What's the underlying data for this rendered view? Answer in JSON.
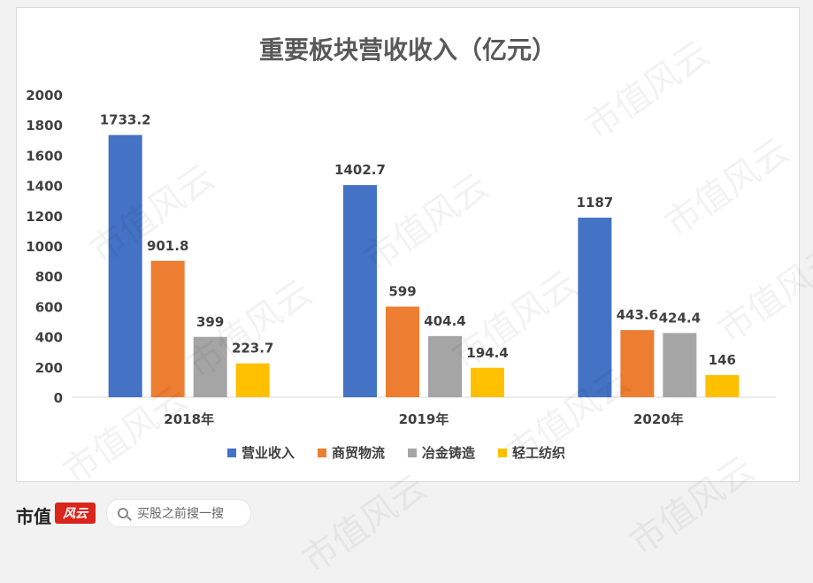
{
  "chart_data": {
    "type": "bar",
    "title": "重要板块营收收入（亿元）",
    "xlabel": "",
    "ylabel": "",
    "categories": [
      "2018年",
      "2019年",
      "2020年"
    ],
    "ylim": [
      0,
      2000
    ],
    "yticks": [
      0,
      200,
      400,
      600,
      800,
      1000,
      1200,
      1400,
      1600,
      1800,
      2000
    ],
    "grid": false,
    "legend": "bottom",
    "series": [
      {
        "name": "营业收入",
        "values": [
          1733.2,
          1402.7,
          1187
        ],
        "labels": [
          "1733.2",
          "1402.7",
          "1187"
        ],
        "color": "#4472c4"
      },
      {
        "name": "商贸物流",
        "values": [
          901.8,
          599,
          443.6
        ],
        "labels": [
          "901.8",
          "599",
          "443.6"
        ],
        "color": "#ed7d31"
      },
      {
        "name": "冶金铸造",
        "values": [
          399,
          404.4,
          424.4
        ],
        "labels": [
          "399",
          "404.4",
          "424.4"
        ],
        "color": "#a5a5a5"
      },
      {
        "name": "轻工纺织",
        "values": [
          223.7,
          194.4,
          146
        ],
        "labels": [
          "223.7",
          "194.4",
          "146"
        ],
        "color": "#ffc000"
      }
    ]
  },
  "watermark": "市值风云",
  "footer": {
    "brand": "市值",
    "logo_text": "风云",
    "search_placeholder": "买股之前搜一搜"
  }
}
